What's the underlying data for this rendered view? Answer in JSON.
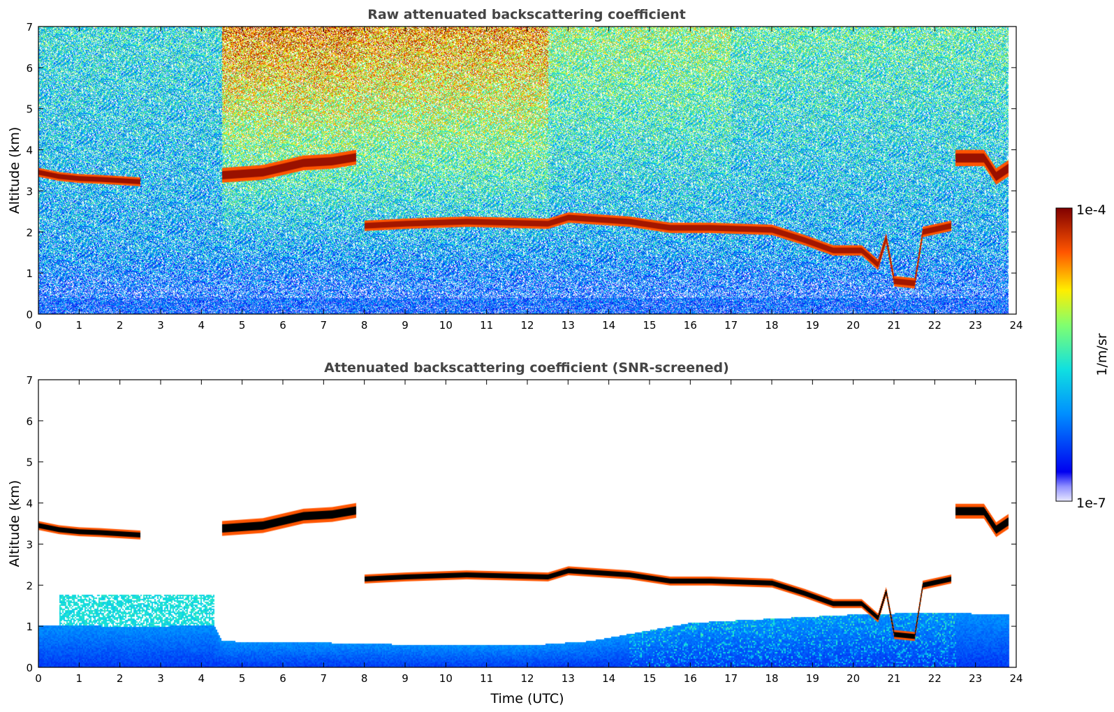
{
  "chart_data": [
    {
      "type": "heatmap",
      "title": "Raw attenuated backscattering coefficient",
      "xlabel": "",
      "ylabel": "Altitude (km)",
      "xlim": [
        0,
        24
      ],
      "ylim": [
        0,
        7
      ],
      "x_ticks": [
        "0",
        "1",
        "2",
        "3",
        "4",
        "5",
        "6",
        "7",
        "8",
        "9",
        "10",
        "11",
        "12",
        "13",
        "14",
        "15",
        "16",
        "17",
        "18",
        "19",
        "20",
        "21",
        "22",
        "23",
        "24"
      ],
      "y_ticks": [
        "0",
        "1",
        "2",
        "3",
        "4",
        "5",
        "6",
        "7"
      ],
      "data_extent_x": [
        0,
        23.8
      ],
      "noise_field": {
        "segments": [
          {
            "x": [
              0,
              4.5
            ],
            "level_top": 0.45
          },
          {
            "x": [
              4.5,
              7.8
            ],
            "level_top": 0.85
          },
          {
            "x": [
              7.8,
              12.5
            ],
            "level_top": 0.82
          },
          {
            "x": [
              12.5,
              17
            ],
            "level_top": 0.6
          },
          {
            "x": [
              17,
              23.8
            ],
            "level_top": 0.52
          }
        ]
      },
      "layers": [
        {
          "name": "",
          "points": [
            [
              0.0,
              3.45
            ],
            [
              0.5,
              3.35
            ],
            [
              1.0,
              3.3
            ],
            [
              1.5,
              3.28
            ],
            [
              2.0,
              3.25
            ],
            [
              2.5,
              3.22
            ]
          ],
          "level": 0.97,
          "thickness": 0.12
        },
        {
          "name": "",
          "points": [
            [
              4.5,
              3.38
            ],
            [
              5.5,
              3.45
            ],
            [
              6.5,
              3.68
            ],
            [
              7.2,
              3.72
            ],
            [
              7.8,
              3.82
            ]
          ],
          "level": 0.97,
          "thickness": 0.2
        },
        {
          "name": "",
          "points": [
            [
              8.0,
              2.15
            ],
            [
              9.0,
              2.2
            ],
            [
              10.5,
              2.25
            ],
            [
              12.5,
              2.2
            ],
            [
              13.0,
              2.35
            ],
            [
              14.5,
              2.25
            ],
            [
              15.5,
              2.1
            ],
            [
              16.5,
              2.1
            ],
            [
              18.0,
              2.05
            ],
            [
              18.8,
              1.8
            ],
            [
              19.5,
              1.55
            ],
            [
              20.2,
              1.55
            ],
            [
              20.6,
              1.2
            ],
            [
              20.8,
              1.85
            ],
            [
              21.0,
              0.8
            ],
            [
              21.5,
              0.75
            ],
            [
              21.7,
              2.0
            ],
            [
              22.4,
              2.15
            ]
          ],
          "level": 0.96,
          "thickness": 0.14
        },
        {
          "name": "",
          "points": [
            [
              22.5,
              3.8
            ],
            [
              23.2,
              3.8
            ],
            [
              23.5,
              3.35
            ],
            [
              23.8,
              3.55
            ]
          ],
          "level": 0.97,
          "thickness": 0.22
        }
      ]
    },
    {
      "type": "heatmap",
      "title": "Attenuated backscattering coefficient (SNR-screened)",
      "xlabel": "Time (UTC)",
      "ylabel": "Altitude (km)",
      "xlim": [
        0,
        24
      ],
      "ylim": [
        0,
        7
      ],
      "x_ticks": [
        "0",
        "1",
        "2",
        "3",
        "4",
        "5",
        "6",
        "7",
        "8",
        "9",
        "10",
        "11",
        "12",
        "13",
        "14",
        "15",
        "16",
        "17",
        "18",
        "19",
        "20",
        "21",
        "22",
        "23",
        "24"
      ],
      "y_ticks": [
        "0",
        "1",
        "2",
        "3",
        "4",
        "5",
        "6",
        "7"
      ],
      "boundary_layer": [
        [
          0,
          1.05
        ],
        [
          2.5,
          1.0
        ],
        [
          4.3,
          1.05
        ],
        [
          4.5,
          0.65
        ],
        [
          8.0,
          0.6
        ],
        [
          9.5,
          0.55
        ],
        [
          12.0,
          0.55
        ],
        [
          13.5,
          0.65
        ],
        [
          16.0,
          1.1
        ],
        [
          18.0,
          1.2
        ],
        [
          20.0,
          1.3
        ],
        [
          22.0,
          1.35
        ],
        [
          23.8,
          1.3
        ]
      ],
      "residual_layer": {
        "x": [
          0.5,
          4.3
        ],
        "y": [
          1.0,
          1.8
        ],
        "level": 0.45
      },
      "layers": [
        {
          "name": "",
          "points": [
            [
              0.0,
              3.45
            ],
            [
              0.5,
              3.35
            ],
            [
              1.0,
              3.3
            ],
            [
              1.5,
              3.28
            ],
            [
              2.0,
              3.25
            ],
            [
              2.5,
              3.22
            ]
          ],
          "level": 1.0,
          "thickness": 0.12
        },
        {
          "name": "",
          "points": [
            [
              4.5,
              3.38
            ],
            [
              5.5,
              3.45
            ],
            [
              6.5,
              3.68
            ],
            [
              7.2,
              3.72
            ],
            [
              7.8,
              3.82
            ]
          ],
          "level": 1.0,
          "thickness": 0.2
        },
        {
          "name": "",
          "points": [
            [
              8.0,
              2.15
            ],
            [
              9.0,
              2.2
            ],
            [
              10.5,
              2.25
            ],
            [
              12.5,
              2.2
            ],
            [
              13.0,
              2.35
            ],
            [
              14.5,
              2.25
            ],
            [
              15.5,
              2.1
            ],
            [
              16.5,
              2.1
            ],
            [
              18.0,
              2.05
            ],
            [
              18.8,
              1.8
            ],
            [
              19.5,
              1.55
            ],
            [
              20.2,
              1.55
            ],
            [
              20.6,
              1.2
            ],
            [
              20.8,
              1.85
            ],
            [
              21.0,
              0.8
            ],
            [
              21.5,
              0.75
            ],
            [
              21.7,
              2.0
            ],
            [
              22.4,
              2.15
            ]
          ],
          "level": 1.0,
          "thickness": 0.12
        },
        {
          "name": "",
          "points": [
            [
              22.5,
              3.8
            ],
            [
              23.2,
              3.8
            ],
            [
              23.5,
              3.35
            ],
            [
              23.8,
              3.55
            ]
          ],
          "level": 1.0,
          "thickness": 0.2
        }
      ]
    }
  ],
  "colorbar": {
    "max_label": "1e-4",
    "min_label": "1e-7",
    "label": "1/m/sr",
    "scale": "log",
    "colormap": "jet"
  }
}
